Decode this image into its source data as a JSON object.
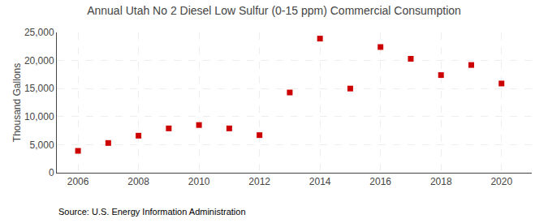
{
  "chart_data": {
    "type": "scatter",
    "title": "Annual Utah No 2 Diesel Low Sulfur (0-15 ppm) Commercial Consumption",
    "ylabel": "Thousand Gallons",
    "annotations": [
      "Source: U.S. Energy Information Administration"
    ],
    "x": [
      2006,
      2007,
      2008,
      2009,
      2010,
      2011,
      2012,
      2013,
      2014,
      2015,
      2016,
      2017,
      2018,
      2019,
      2020
    ],
    "values": [
      3900,
      5300,
      6600,
      7900,
      8500,
      7900,
      6700,
      14300,
      23900,
      15000,
      22400,
      20300,
      17400,
      19200,
      15900
    ],
    "color": "#cc0000",
    "marker": "square",
    "xlim": [
      2005.3,
      2021.0
    ],
    "xticks": [
      2006,
      2008,
      2010,
      2012,
      2014,
      2016,
      2018,
      2020
    ],
    "ylim": [
      0,
      25000
    ],
    "yticks": [
      0,
      {
        "value": 5000,
        "label": "5,000"
      },
      {
        "value": 10000,
        "label": "10,000"
      },
      {
        "value": 15000,
        "label": "15,000"
      },
      {
        "value": 20000,
        "label": "20,000"
      },
      {
        "value": 25000,
        "label": "25,000"
      }
    ],
    "grid": true
  }
}
